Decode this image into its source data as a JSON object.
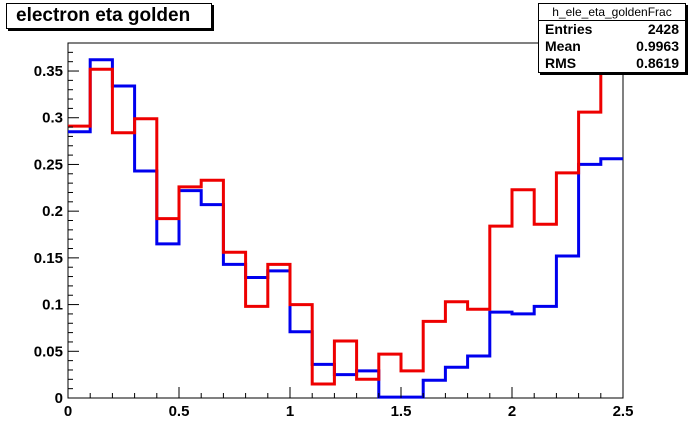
{
  "chart_data": {
    "type": "histogram",
    "title": "electron eta golden",
    "xlim": [
      0,
      2.5
    ],
    "ylim": [
      0,
      0.38
    ],
    "x_ticks": [
      0,
      0.5,
      1,
      1.5,
      2,
      2.5
    ],
    "x_tick_labels": [
      "0",
      "0.5",
      "1",
      "1.5",
      "2",
      "2.5"
    ],
    "y_ticks": [
      0,
      0.05,
      0.1,
      0.15,
      0.2,
      0.25,
      0.3,
      0.35
    ],
    "y_tick_labels": [
      "0",
      "0.05",
      "0.1",
      "0.15",
      "0.2",
      "0.25",
      "0.3",
      "0.35"
    ],
    "bin_edges": [
      0,
      0.1,
      0.2,
      0.3,
      0.4,
      0.5,
      0.6,
      0.7,
      0.8,
      0.9,
      1.0,
      1.1,
      1.2,
      1.3,
      1.4,
      1.5,
      1.6,
      1.7,
      1.8,
      1.9,
      2.0,
      2.1,
      2.2,
      2.3,
      2.4,
      2.5
    ],
    "series": [
      {
        "color": "#0000ee",
        "values": [
          0.285,
          0.362,
          0.334,
          0.243,
          0.165,
          0.222,
          0.207,
          0.143,
          0.129,
          0.136,
          0.071,
          0.036,
          0.025,
          0.029,
          0.001,
          0.001,
          0.019,
          0.033,
          0.045,
          0.092,
          0.09,
          0.098,
          0.152,
          0.25,
          0.256
        ]
      },
      {
        "color": "#ee0000",
        "values": [
          0.291,
          0.352,
          0.284,
          0.299,
          0.192,
          0.226,
          0.233,
          0.156,
          0.098,
          0.143,
          0.1,
          0.015,
          0.061,
          0.02,
          0.047,
          0.029,
          0.082,
          0.103,
          0.095,
          0.184,
          0.223,
          0.186,
          0.241,
          0.306,
          0.38
        ]
      }
    ],
    "stats": {
      "name": "h_ele_eta_goldenFrac",
      "rows": [
        {
          "label": "Entries",
          "value": "2428"
        },
        {
          "label": "Mean",
          "value": "0.9963"
        },
        {
          "label": "RMS",
          "value": "0.8619"
        }
      ]
    }
  }
}
